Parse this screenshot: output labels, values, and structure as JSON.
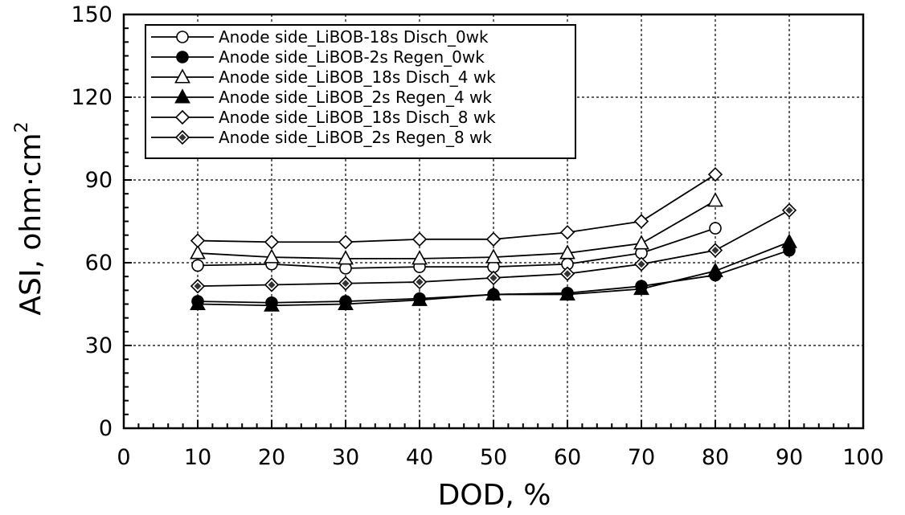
{
  "chart_data": {
    "type": "line",
    "title": "",
    "xlabel": "DOD, %",
    "ylabel": "ASI, ohm·cm",
    "ylabel_superscript": "2",
    "xlim": [
      0,
      100
    ],
    "ylim": [
      0,
      150
    ],
    "x_ticks": [
      "0",
      "10",
      "20",
      "30",
      "40",
      "50",
      "60",
      "70",
      "80",
      "90",
      "100"
    ],
    "y_ticks": [
      "0",
      "30",
      "60",
      "90",
      "120",
      "150"
    ],
    "grid": true,
    "legend_position": "top-left",
    "series": [
      {
        "name": "Anode side_LiBOB-18s Disch_0wk",
        "marker": "circle-open",
        "x": [
          10,
          20,
          30,
          40,
          50,
          60,
          70,
          80
        ],
        "y": [
          59,
          59.5,
          58,
          58.5,
          58.5,
          59.5,
          63.5,
          72.5
        ]
      },
      {
        "name": "Anode side_LiBOB-2s Regen_0wk",
        "marker": "circle-filled",
        "x": [
          10,
          20,
          30,
          40,
          50,
          60,
          70,
          80,
          90
        ],
        "y": [
          46,
          45.5,
          46,
          47,
          48.5,
          49,
          51.5,
          55.5,
          64.5
        ]
      },
      {
        "name": "Anode side_LiBOB_18s Disch_4 wk",
        "marker": "triangle-open",
        "x": [
          10,
          20,
          30,
          40,
          50,
          60,
          70,
          80
        ],
        "y": [
          63.5,
          62,
          61.5,
          61.5,
          62,
          63.5,
          67,
          82.5
        ]
      },
      {
        "name": "Anode side_LiBOB_2s Regen_4 wk",
        "marker": "triangle-filled",
        "x": [
          10,
          20,
          30,
          40,
          50,
          60,
          70,
          80,
          90
        ],
        "y": [
          45,
          44.5,
          45,
          46.5,
          48.5,
          48.5,
          50.5,
          57,
          67.5
        ]
      },
      {
        "name": "Anode side_LiBOB_18s Disch_8 wk",
        "marker": "diamond-open",
        "x": [
          10,
          20,
          30,
          40,
          50,
          60,
          70,
          80
        ],
        "y": [
          68,
          67.5,
          67.5,
          68.5,
          68.5,
          71,
          75,
          92
        ]
      },
      {
        "name": "Anode side_LiBOB_2s Regen_8 wk",
        "marker": "diamond-filled",
        "x": [
          10,
          20,
          30,
          40,
          50,
          60,
          70,
          80,
          90
        ],
        "y": [
          51.5,
          52,
          52.5,
          53,
          54.5,
          56,
          59.5,
          64.5,
          79
        ]
      }
    ]
  }
}
